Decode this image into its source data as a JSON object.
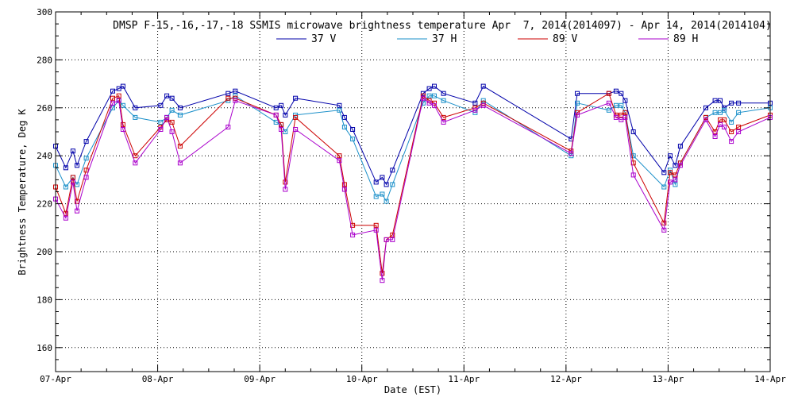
{
  "chart_data": {
    "type": "line",
    "title": "DMSP F-15,-16,-17,-18 SSMIS microwave brightness temperature Apr  7, 2014(2014097) - Apr 14, 2014(2014104)",
    "xlabel": "Date (EST)",
    "ylabel": "Brightness Temperature, Deg K",
    "ylim": [
      150,
      300
    ],
    "xlim": [
      0,
      7
    ],
    "yticks": [
      160,
      180,
      200,
      220,
      240,
      260,
      280,
      300
    ],
    "xtick_labels": [
      "07-Apr",
      "08-Apr",
      "09-Apr",
      "10-Apr",
      "11-Apr",
      "12-Apr",
      "13-Apr",
      "14-Apr"
    ],
    "legend": "top-center",
    "grid": true,
    "series": [
      {
        "name": "37 V",
        "color": "#0000aa",
        "x": [
          0.0,
          0.1,
          0.17,
          0.21,
          0.3,
          0.56,
          0.62,
          0.66,
          0.78,
          1.03,
          1.09,
          1.14,
          1.22,
          1.69,
          1.76,
          2.16,
          2.21,
          2.25,
          2.35,
          2.78,
          2.83,
          2.91,
          3.14,
          3.2,
          3.24,
          3.3,
          3.6,
          3.66,
          3.71,
          3.8,
          4.11,
          4.19,
          5.05,
          5.11,
          5.42,
          5.49,
          5.54,
          5.58,
          5.66,
          5.96,
          6.02,
          6.07,
          6.12,
          6.37,
          6.46,
          6.51,
          6.55,
          6.62,
          6.69,
          7.0
        ],
        "values": [
          244,
          235,
          242,
          236,
          246,
          267,
          268,
          269,
          260,
          261,
          265,
          264,
          260,
          266,
          267,
          260,
          261,
          257,
          264,
          261,
          256,
          251,
          229,
          231,
          228,
          234,
          266,
          268,
          269,
          266,
          262,
          269,
          247,
          266,
          266,
          267,
          266,
          263,
          250,
          233,
          240,
          236,
          244,
          260,
          263,
          263,
          260,
          262,
          262,
          262
        ]
      },
      {
        "name": "37 H",
        "color": "#1a8fc9",
        "x": [
          0.0,
          0.1,
          0.17,
          0.21,
          0.3,
          0.56,
          0.62,
          0.66,
          0.78,
          1.03,
          1.09,
          1.14,
          1.22,
          1.69,
          1.76,
          2.16,
          2.21,
          2.25,
          2.35,
          2.78,
          2.83,
          2.91,
          3.14,
          3.2,
          3.24,
          3.3,
          3.6,
          3.66,
          3.71,
          3.8,
          4.11,
          4.19,
          5.05,
          5.11,
          5.42,
          5.49,
          5.54,
          5.58,
          5.66,
          5.96,
          6.02,
          6.07,
          6.12,
          6.37,
          6.46,
          6.51,
          6.55,
          6.62,
          6.69,
          7.0
        ],
        "values": [
          236,
          227,
          231,
          228,
          239,
          260,
          263,
          261,
          256,
          254,
          256,
          259,
          257,
          263,
          265,
          254,
          253,
          250,
          257,
          259,
          252,
          247,
          223,
          224,
          221,
          228,
          262,
          265,
          265,
          263,
          258,
          263,
          240,
          262,
          259,
          261,
          261,
          258,
          240,
          227,
          234,
          228,
          237,
          256,
          258,
          258,
          259,
          254,
          258,
          260
        ]
      },
      {
        "name": "89 V",
        "color": "#cc0000",
        "x": [
          0.0,
          0.1,
          0.17,
          0.21,
          0.3,
          0.56,
          0.62,
          0.66,
          0.78,
          1.03,
          1.09,
          1.14,
          1.22,
          1.69,
          1.76,
          2.16,
          2.21,
          2.25,
          2.35,
          2.78,
          2.83,
          2.91,
          3.14,
          3.2,
          3.24,
          3.3,
          3.6,
          3.66,
          3.71,
          3.8,
          4.11,
          4.19,
          5.05,
          5.11,
          5.42,
          5.49,
          5.54,
          5.58,
          5.66,
          5.96,
          6.02,
          6.07,
          6.12,
          6.37,
          6.46,
          6.51,
          6.55,
          6.62,
          6.69,
          7.0
        ],
        "values": [
          227,
          216,
          231,
          221,
          234,
          264,
          265,
          253,
          240,
          252,
          255,
          254,
          244,
          264,
          264,
          257,
          253,
          229,
          256,
          240,
          228,
          211,
          211,
          191,
          205,
          207,
          265,
          263,
          262,
          256,
          260,
          262,
          242,
          258,
          266,
          257,
          257,
          258,
          237,
          212,
          233,
          232,
          237,
          256,
          250,
          255,
          255,
          250,
          252,
          257
        ]
      },
      {
        "name": "89 H",
        "color": "#aa00cc",
        "x": [
          0.0,
          0.1,
          0.17,
          0.21,
          0.3,
          0.56,
          0.62,
          0.66,
          0.78,
          1.03,
          1.09,
          1.14,
          1.22,
          1.69,
          1.76,
          2.16,
          2.21,
          2.25,
          2.35,
          2.78,
          2.83,
          2.91,
          3.14,
          3.2,
          3.24,
          3.3,
          3.6,
          3.66,
          3.71,
          3.8,
          4.11,
          4.19,
          5.05,
          5.11,
          5.42,
          5.49,
          5.54,
          5.58,
          5.66,
          5.96,
          6.02,
          6.07,
          6.12,
          6.37,
          6.46,
          6.51,
          6.55,
          6.62,
          6.69,
          7.0
        ],
        "values": [
          222,
          214,
          229,
          217,
          231,
          262,
          263,
          251,
          237,
          251,
          256,
          250,
          237,
          252,
          263,
          257,
          251,
          226,
          251,
          238,
          226,
          207,
          209,
          188,
          205,
          205,
          264,
          262,
          261,
          254,
          259,
          261,
          241,
          257,
          262,
          256,
          255,
          256,
          232,
          209,
          229,
          230,
          236,
          255,
          248,
          253,
          252,
          246,
          250,
          256
        ]
      }
    ]
  }
}
